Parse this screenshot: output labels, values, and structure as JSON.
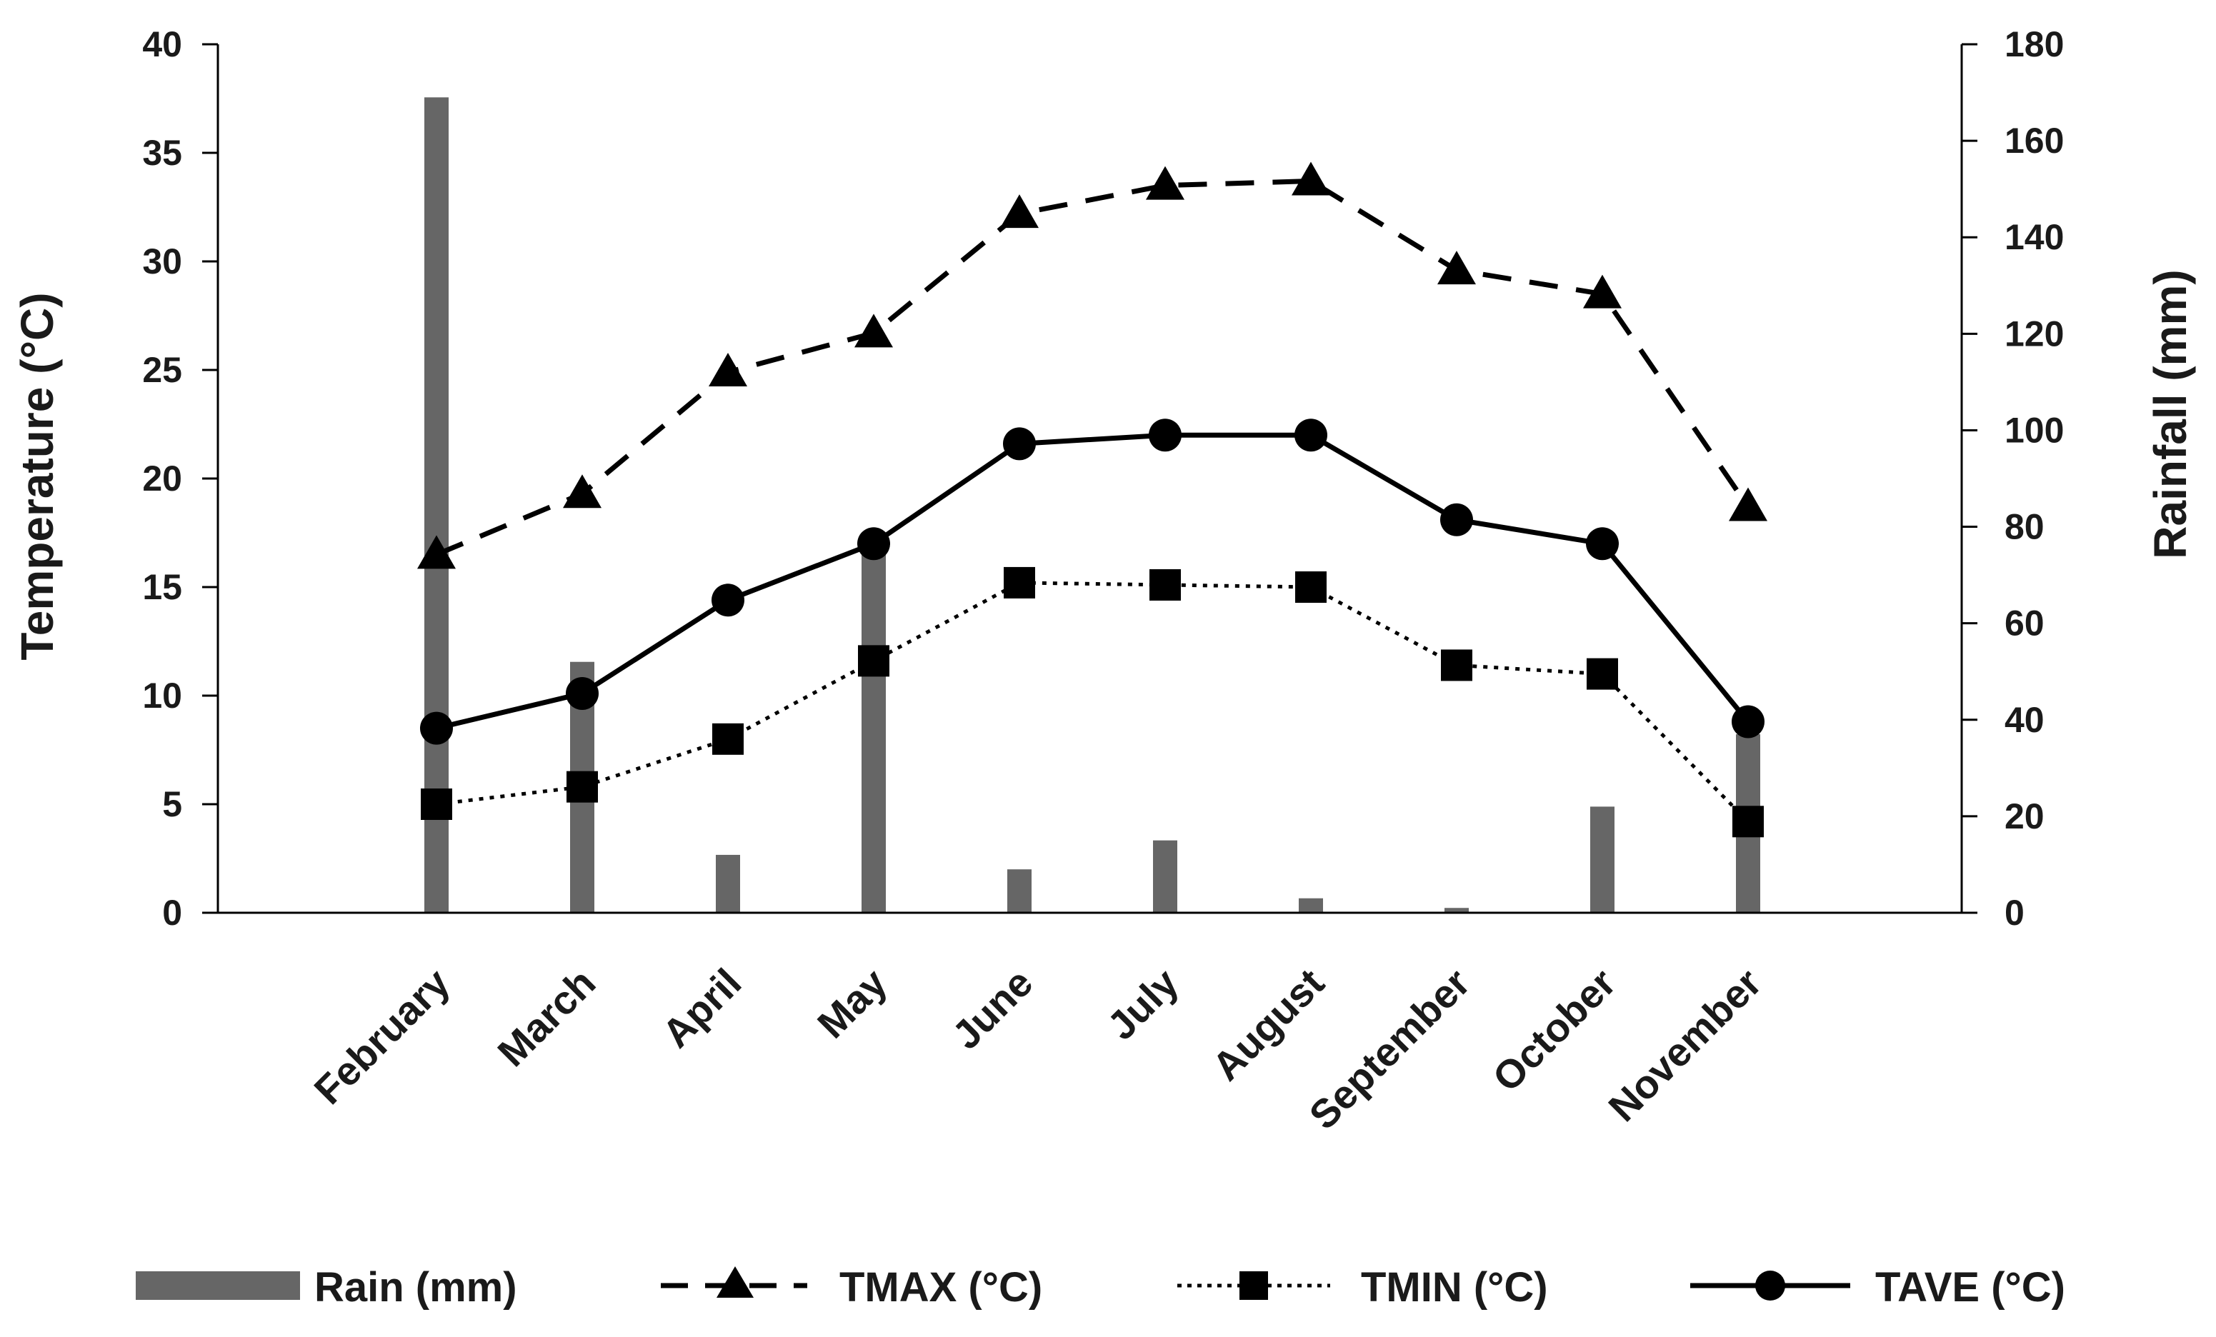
{
  "chart_data": {
    "type": "bar",
    "title": "",
    "categories": [
      "February",
      "March",
      "April",
      "May",
      "June",
      "July",
      "August",
      "September",
      "October",
      "November"
    ],
    "ylabel": "Temperature (°C)",
    "ylabel_right": "Rainfall (mm)",
    "ylim": [
      0,
      40
    ],
    "ylim_right": [
      0,
      180
    ],
    "yticks": [
      0,
      5,
      10,
      15,
      20,
      25,
      30,
      35,
      40
    ],
    "yticks_right": [
      0,
      20,
      40,
      60,
      80,
      100,
      120,
      140,
      160,
      180
    ],
    "series": [
      {
        "name": "Rain (mm)",
        "kind": "bar",
        "axis": "right",
        "color": "#666666",
        "values": [
          169,
          52,
          12,
          76,
          9,
          15,
          3,
          1,
          22,
          37
        ]
      },
      {
        "name": "TMAX (°C)",
        "kind": "line",
        "axis": "left",
        "dash": "dashed",
        "marker": "triangle",
        "color": "#000000",
        "values": [
          16.5,
          19.3,
          24.9,
          26.7,
          32.2,
          33.5,
          33.7,
          29.6,
          28.5,
          18.7
        ]
      },
      {
        "name": "TMIN (°C)",
        "kind": "line",
        "axis": "left",
        "dash": "dotted",
        "marker": "square",
        "color": "#000000",
        "values": [
          5.0,
          5.8,
          8.0,
          11.6,
          15.2,
          15.1,
          15.0,
          11.4,
          11.0,
          4.2
        ]
      },
      {
        "name": "TAVE (°C)",
        "kind": "line",
        "axis": "left",
        "dash": "solid",
        "marker": "circle",
        "color": "#000000",
        "values": [
          8.5,
          10.1,
          14.4,
          17.0,
          21.6,
          22.0,
          22.0,
          18.1,
          17.0,
          8.8
        ]
      }
    ],
    "legend": "bottom"
  }
}
